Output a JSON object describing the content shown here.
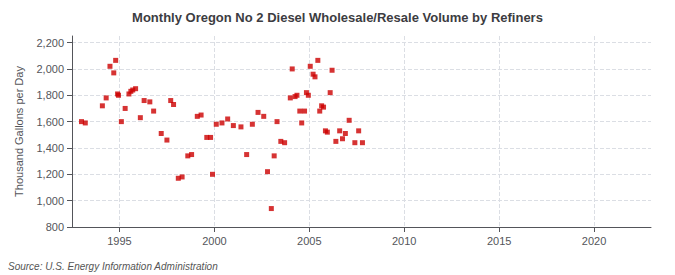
{
  "chart_data": {
    "type": "scatter",
    "title": "Monthly Oregon No 2 Diesel Wholesale/Resale Volume by Refiners",
    "ylabel": "Thousand Gallons per Day",
    "annotations": [
      "Source: U.S. Energy Information Administration"
    ],
    "color": "#cc0000",
    "marker": "square",
    "grid": true,
    "xlim": [
      1992.5,
      2023
    ],
    "ylim": [
      800,
      2250
    ],
    "xticks": [
      1995,
      2000,
      2005,
      2010,
      2015,
      2020
    ],
    "yticks": [
      800,
      {
        "value": 1000,
        "label": "1,000"
      },
      {
        "value": 1200,
        "label": "1,200"
      },
      {
        "value": 1400,
        "label": "1,400"
      },
      {
        "value": 1600,
        "label": "1,600"
      },
      {
        "value": 1800,
        "label": "1,800"
      },
      {
        "value": 2000,
        "label": "2,000"
      },
      {
        "value": 2200,
        "label": "2,200"
      }
    ],
    "x": [
      1993.0,
      1993.2,
      1994.1,
      1994.3,
      1994.5,
      1994.7,
      1994.8,
      1994.9,
      1994.95,
      1995.1,
      1995.3,
      1995.5,
      1995.6,
      1995.7,
      1995.85,
      1996.1,
      1996.3,
      1996.6,
      1996.8,
      1997.2,
      1997.5,
      1997.7,
      1997.85,
      1998.1,
      1998.3,
      1998.6,
      1998.8,
      1999.1,
      1999.3,
      1999.6,
      1999.8,
      1999.9,
      2000.1,
      2000.4,
      2000.7,
      2001.0,
      2001.4,
      2001.7,
      2002.0,
      2002.3,
      2002.6,
      2002.8,
      2003.0,
      2003.15,
      2003.3,
      2003.5,
      2003.7,
      2004.0,
      2004.1,
      2004.25,
      2004.35,
      2004.5,
      2004.6,
      2004.75,
      2004.85,
      2004.95,
      2005.05,
      2005.2,
      2005.3,
      2005.45,
      2005.55,
      2005.65,
      2005.75,
      2005.85,
      2005.95,
      2006.1,
      2006.2,
      2006.4,
      2006.6,
      2006.75,
      2006.9,
      2007.1,
      2007.4,
      2007.6,
      2007.8
    ],
    "values": [
      1600,
      1590,
      1720,
      1780,
      2020,
      1970,
      2065,
      1810,
      1800,
      1600,
      1700,
      1810,
      1830,
      1840,
      1850,
      1630,
      1760,
      1750,
      1680,
      1510,
      1460,
      1760,
      1730,
      1170,
      1180,
      1340,
      1350,
      1640,
      1650,
      1480,
      1480,
      1200,
      1580,
      1590,
      1620,
      1570,
      1560,
      1350,
      1580,
      1670,
      1640,
      1220,
      940,
      1340,
      1600,
      1450,
      1440,
      1780,
      2000,
      1790,
      1800,
      1680,
      1590,
      1680,
      1820,
      1800,
      2020,
      1960,
      1940,
      2065,
      1680,
      1720,
      1710,
      1530,
      1520,
      1820,
      1990,
      1450,
      1530,
      1470,
      1510,
      1610,
      1440,
      1530,
      1440
    ]
  }
}
